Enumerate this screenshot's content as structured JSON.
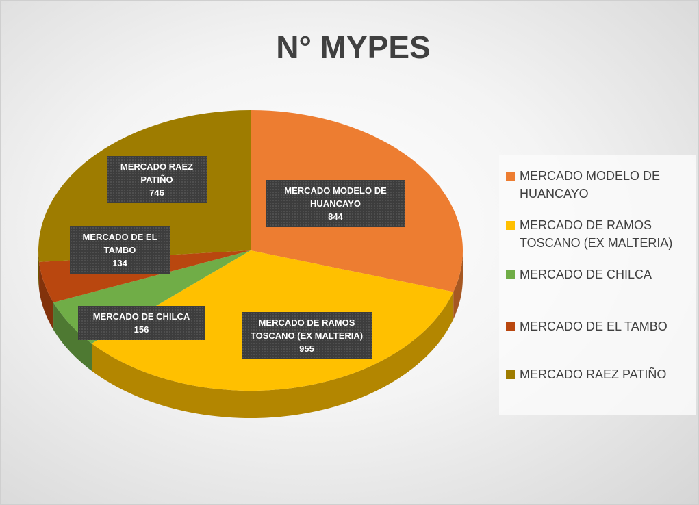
{
  "chart_data": {
    "type": "pie",
    "title": "N° MYPES",
    "categories": [
      "MERCADO MODELO DE HUANCAYO",
      "MERCADO DE RAMOS TOSCANO (EX MALTERIA)",
      "MERCADO DE CHILCA",
      "MERCADO DE EL TAMBO",
      "MERCADO RAEZ PATIÑO"
    ],
    "values": [
      844,
      955,
      156,
      134,
      746
    ],
    "colors": [
      "#ED7D31",
      "#FFC000",
      "#70AD47",
      "#B9470F",
      "#9E7C00"
    ],
    "legend": "right"
  }
}
